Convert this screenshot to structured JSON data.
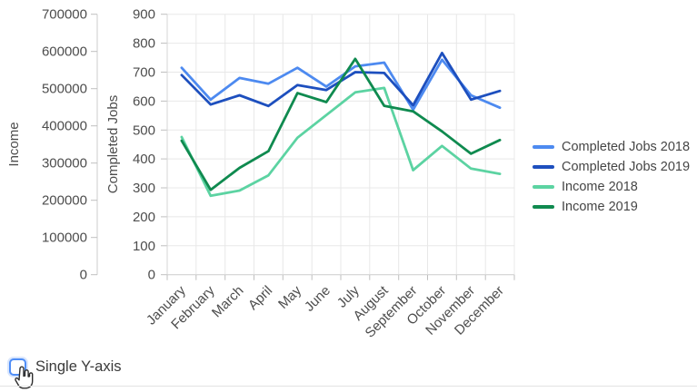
{
  "chart_data": {
    "type": "line",
    "categories": [
      "January",
      "February",
      "March",
      "April",
      "May",
      "June",
      "July",
      "August",
      "September",
      "October",
      "November",
      "December"
    ],
    "series": [
      {
        "name": "Completed Jobs 2018",
        "axis": "jobs",
        "color": "#4d8af0",
        "values": [
          715,
          605,
          680,
          660,
          715,
          650,
          720,
          733,
          570,
          743,
          620,
          577
        ]
      },
      {
        "name": "Completed Jobs 2019",
        "axis": "jobs",
        "color": "#1d4fbe",
        "values": [
          690,
          588,
          620,
          583,
          655,
          638,
          700,
          697,
          585,
          766,
          605,
          635
        ]
      },
      {
        "name": "Income 2018",
        "axis": "income",
        "color": "#5cd3a2",
        "values": [
          370000,
          212000,
          226000,
          267000,
          368000,
          429000,
          490000,
          502000,
          281000,
          346000,
          285000,
          271000
        ]
      },
      {
        "name": "Income 2019",
        "axis": "income",
        "color": "#0f8a4f",
        "values": [
          360000,
          228000,
          287000,
          332000,
          488000,
          464000,
          580000,
          454000,
          439000,
          385000,
          325000,
          362000
        ]
      }
    ],
    "axes": {
      "income": {
        "label": "Income",
        "min": 0,
        "max": 700000,
        "tick_step": 100000
      },
      "jobs": {
        "label": "Completed Jobs",
        "min": 0,
        "max": 900,
        "tick_step": 100
      }
    },
    "grid": true,
    "legend_position": "right",
    "x_tick_rotation": -45
  },
  "controls": {
    "single_y_axis_label": "Single Y-axis",
    "single_y_axis_checked": false
  }
}
